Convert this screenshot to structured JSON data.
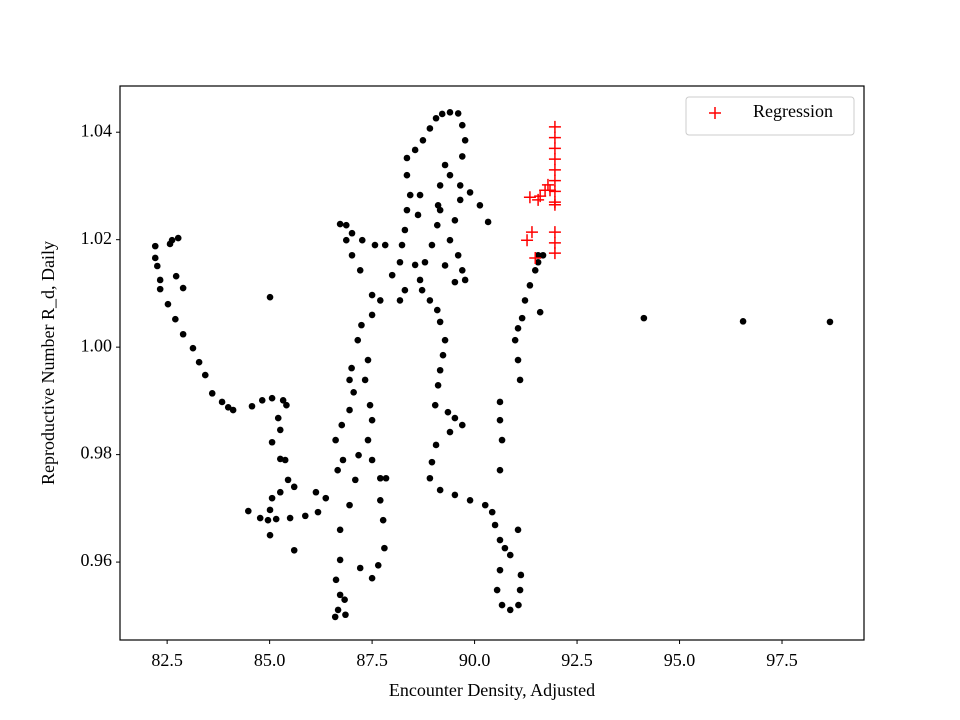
{
  "chart_data": {
    "type": "scatter",
    "xlabel": "Encounter Density, Adjusted",
    "ylabel": "Reproductive Number R_d, Daily",
    "xlim": [
      81.35,
      99.5
    ],
    "ylim": [
      0.9455,
      1.0486
    ],
    "xticks": [
      82.5,
      {
        "value": 85,
        "label": "85.0"
      },
      87.5,
      {
        "value": 90,
        "label": "90.0"
      },
      92.5,
      {
        "value": 95,
        "label": "95.0"
      },
      97.5
    ],
    "yticks": [
      0.96,
      0.98,
      {
        "value": 1,
        "label": "1.00"
      },
      1.02,
      1.04
    ],
    "legend": "upper right",
    "series": [
      {
        "color": "#000000",
        "marker": "o",
        "x": [
          82.21,
          82.21,
          82.26,
          82.33,
          82.33,
          82.52,
          82.7,
          82.89,
          83.13,
          83.28,
          83.43,
          83.6,
          83.84,
          83.99,
          84.11,
          84.57,
          84.82,
          85.06,
          85.33,
          85.41,
          85.21,
          85.26,
          85.06,
          85.26,
          85.38,
          85.45,
          85.6,
          85.26,
          85.06,
          85.01,
          84.96,
          85.01,
          84.77,
          84.48,
          85.16,
          85.5,
          85.6,
          85.87,
          82.62,
          82.77,
          82.57,
          82.72,
          82.89,
          85.01,
          86.13,
          86.18,
          86.37,
          86.66,
          86.79,
          86.61,
          86.76,
          86.95,
          87.05,
          86.95,
          87.0,
          87.15,
          87.24,
          87.5,
          87.7,
          87.5,
          87.21,
          87.01,
          86.87,
          86.72,
          86.87,
          87.01,
          87.26,
          87.57,
          87.82,
          87.4,
          87.33,
          87.45,
          87.5,
          87.4,
          87.5,
          87.7,
          87.84,
          87.7,
          87.77,
          87.8,
          87.65,
          87.5,
          87.21,
          87.09,
          87.17,
          86.95,
          86.72,
          86.62,
          86.72,
          86.67,
          86.6,
          86.83,
          86.85,
          86.72,
          87.99,
          88.18,
          88.23,
          88.3,
          88.35,
          88.43,
          88.35,
          88.35,
          88.55,
          88.74,
          88.91,
          89.06,
          89.21,
          89.4,
          89.6,
          89.7,
          89.77,
          89.7,
          89.28,
          89.16,
          89.16,
          89.09,
          88.96,
          88.79,
          88.67,
          88.72,
          88.91,
          89.09,
          89.16,
          89.28,
          89.23,
          89.16,
          89.11,
          89.04,
          89.35,
          89.52,
          89.7,
          89.4,
          89.06,
          88.96,
          88.91,
          89.16,
          89.52,
          89.89,
          90.26,
          90.43,
          90.5,
          90.62,
          90.74,
          90.87,
          90.62,
          90.55,
          90.67,
          90.87,
          91.07,
          91.11,
          91.13,
          91.06,
          89.4,
          89.65,
          89.89,
          90.13,
          90.33,
          89.65,
          89.52,
          89.4,
          89.6,
          89.7,
          89.52,
          89.77,
          89.28,
          88.62,
          88.67,
          89.11,
          88.18,
          88.3,
          88.55,
          90.62,
          90.62,
          90.67,
          90.62,
          91.11,
          91.06,
          90.99,
          91.06,
          91.16,
          91.23,
          91.35,
          91.48,
          91.55,
          91.6,
          91.67,
          91.55,
          94.13,
          96.55,
          98.67
        ],
        "values": [
          1.0188,
          1.0166,
          1.0151,
          1.0125,
          1.0108,
          1.008,
          1.0052,
          1.0024,
          0.9998,
          0.9972,
          0.9948,
          0.9914,
          0.9898,
          0.9888,
          0.9883,
          0.989,
          0.9901,
          0.9905,
          0.9901,
          0.9892,
          0.9868,
          0.9846,
          0.9823,
          0.9792,
          0.979,
          0.9753,
          0.974,
          0.973,
          0.9719,
          0.9697,
          0.9678,
          0.965,
          0.9682,
          0.9695,
          0.968,
          0.9682,
          0.9622,
          0.9686,
          1.0199,
          1.0203,
          1.0192,
          1.0132,
          1.011,
          1.0093,
          0.973,
          0.9693,
          0.9719,
          0.9771,
          0.979,
          0.9827,
          0.9855,
          0.9883,
          0.9916,
          0.9939,
          0.9961,
          1.0013,
          1.0041,
          1.006,
          1.0087,
          1.0097,
          1.0143,
          1.0171,
          1.0199,
          1.0229,
          1.0227,
          1.0212,
          1.0199,
          1.019,
          1.019,
          0.9976,
          0.9939,
          0.9892,
          0.9864,
          0.9827,
          0.979,
          0.9756,
          0.9756,
          0.9715,
          0.9678,
          0.9626,
          0.9594,
          0.957,
          0.9589,
          0.9753,
          0.9799,
          0.9706,
          0.9604,
          0.9567,
          0.9539,
          0.9511,
          0.9498,
          0.953,
          0.9502,
          0.966,
          1.0134,
          1.0158,
          1.019,
          1.0218,
          1.0255,
          1.0283,
          1.032,
          1.0352,
          1.0367,
          1.0385,
          1.0407,
          1.0426,
          1.0434,
          1.0437,
          1.0435,
          1.0413,
          1.0385,
          1.0355,
          1.0339,
          1.0301,
          1.0255,
          1.0227,
          1.019,
          1.0158,
          1.0125,
          1.0106,
          1.0087,
          1.0069,
          1.0047,
          1.0013,
          0.9985,
          0.9957,
          0.9929,
          0.9892,
          0.9879,
          0.9868,
          0.9855,
          0.9842,
          0.9818,
          0.9786,
          0.9756,
          0.9734,
          0.9725,
          0.9715,
          0.9706,
          0.9693,
          0.9669,
          0.9641,
          0.9626,
          0.9613,
          0.9585,
          0.9548,
          0.952,
          0.9511,
          0.952,
          0.9548,
          0.9576,
          0.966,
          1.032,
          1.0301,
          1.0288,
          1.0264,
          1.0233,
          1.0274,
          1.0236,
          1.0199,
          1.0171,
          1.0143,
          1.0121,
          1.0125,
          1.0152,
          1.0246,
          1.0283,
          1.0264,
          1.0087,
          1.0106,
          1.0153,
          0.9898,
          0.9864,
          0.9827,
          0.9771,
          0.9939,
          0.9976,
          1.0013,
          1.0035,
          1.0054,
          1.0087,
          1.0115,
          1.0143,
          1.0158,
          1.0065,
          1.0171,
          1.0171,
          1.0054,
          1.0048,
          1.0047
        ]
      },
      {
        "name": "Regression",
        "color": "#ff0000",
        "marker": "+",
        "x": [
          91.96,
          91.96,
          91.96,
          91.96,
          91.96,
          91.96,
          91.96,
          91.96,
          91.96,
          91.72,
          91.6,
          91.35,
          91.79,
          91.55,
          91.96,
          91.96,
          91.96,
          91.4,
          91.28,
          91.48,
          91.84
        ],
        "values": [
          1.041,
          1.039,
          1.037,
          1.035,
          1.033,
          1.031,
          1.029,
          1.027,
          1.0265,
          1.0292,
          1.0281,
          1.0279,
          1.0302,
          1.0274,
          1.0214,
          1.0194,
          1.0175,
          1.0214,
          1.0199,
          1.0166,
          1.0292
        ]
      }
    ]
  }
}
